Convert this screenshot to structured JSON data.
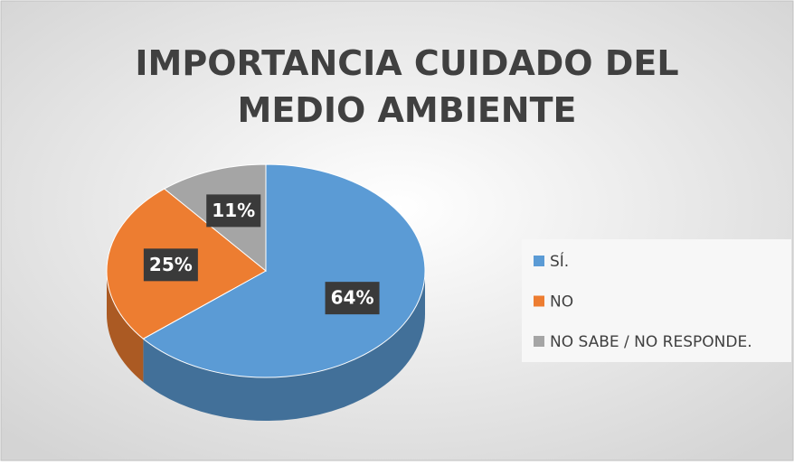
{
  "chart_data": {
    "type": "pie3d",
    "title": "IMPORTANCIA CUIDADO DEL MEDIO AMBIENTE",
    "categories": [
      "SÍ.",
      "NO",
      "NO SABE / NO RESPONDE."
    ],
    "values": [
      64,
      25,
      11
    ],
    "value_labels": [
      "64%",
      "25%",
      "11%"
    ],
    "colors": [
      "#5b9bd5",
      "#ed7d31",
      "#a5a5a5"
    ],
    "legend": "right"
  }
}
